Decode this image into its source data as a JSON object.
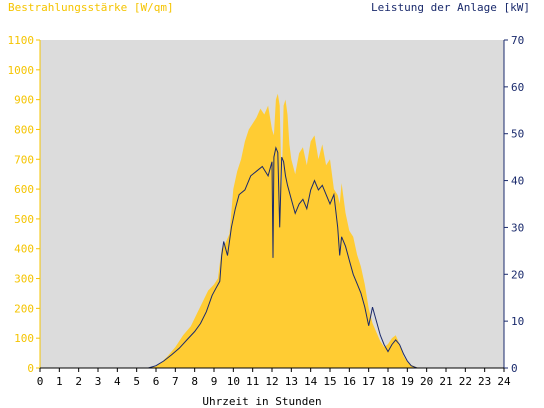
{
  "chart_data": {
    "type": "area",
    "title_left": "Bestrahlungsstärke [W/qm]",
    "title_right": "Leistung der Anlage [kW]",
    "xlabel": "Uhrzeit in Stunden",
    "xlim": [
      0,
      24
    ],
    "x_ticks": [
      "0",
      "1",
      "2",
      "3",
      "4",
      "5",
      "6",
      "7",
      "8",
      "9",
      "10",
      "11",
      "12",
      "13",
      "14",
      "15",
      "16",
      "17",
      "18",
      "19",
      "20",
      "21",
      "22",
      "23",
      "24"
    ],
    "ylim_left": [
      0,
      1100
    ],
    "y_ticks_left": [
      "0",
      "100",
      "200",
      "300",
      "400",
      "500",
      "600",
      "700",
      "800",
      "900",
      "1000",
      "1100"
    ],
    "ylim_right": [
      0,
      70
    ],
    "y_ticks_right": [
      "0",
      "10",
      "20",
      "30",
      "40",
      "50",
      "60",
      "70"
    ],
    "grid": false,
    "plot_background": "#dcdcdc",
    "series": [
      {
        "name": "Bestrahlungsstärke",
        "axis": "left",
        "style": "area",
        "color": "#ffcc33",
        "x": [
          0,
          5.5,
          6,
          6.3,
          6.6,
          7,
          7.4,
          7.8,
          8.1,
          8.4,
          8.7,
          9,
          9.2,
          9.4,
          9.6,
          9.8,
          10,
          10.2,
          10.4,
          10.6,
          10.8,
          11,
          11.2,
          11.4,
          11.6,
          11.8,
          12,
          12.1,
          12.2,
          12.3,
          12.4,
          12.5,
          12.6,
          12.7,
          12.8,
          12.9,
          13,
          13.2,
          13.4,
          13.6,
          13.8,
          14,
          14.2,
          14.4,
          14.6,
          14.8,
          15,
          15.2,
          15.4,
          15.5,
          15.6,
          15.8,
          16,
          16.2,
          16.4,
          16.6,
          16.8,
          17,
          17.2,
          17.4,
          17.6,
          17.8,
          18,
          18.2,
          18.4,
          18.6,
          18.8,
          19,
          19.2,
          19.5,
          20,
          24
        ],
        "values": [
          0,
          0,
          5,
          20,
          40,
          70,
          110,
          140,
          180,
          220,
          260,
          280,
          300,
          400,
          420,
          450,
          600,
          660,
          700,
          760,
          800,
          820,
          840,
          870,
          850,
          880,
          800,
          780,
          900,
          920,
          880,
          600,
          880,
          900,
          850,
          750,
          700,
          650,
          720,
          740,
          680,
          760,
          780,
          700,
          750,
          680,
          700,
          600,
          580,
          550,
          620,
          520,
          460,
          440,
          380,
          340,
          280,
          200,
          150,
          120,
          90,
          70,
          80,
          100,
          110,
          80,
          40,
          20,
          10,
          2,
          0,
          0
        ]
      },
      {
        "name": "Leistung der Anlage",
        "axis": "right",
        "style": "line",
        "color": "#1a2a6c",
        "x": [
          0,
          5.6,
          6,
          6.4,
          6.8,
          7.2,
          7.6,
          8,
          8.3,
          8.6,
          8.9,
          9.1,
          9.3,
          9.4,
          9.5,
          9.7,
          9.9,
          10.1,
          10.3,
          10.6,
          10.9,
          11.2,
          11.5,
          11.8,
          12,
          12.05,
          12.1,
          12.2,
          12.3,
          12.4,
          12.5,
          12.6,
          12.7,
          12.8,
          13,
          13.2,
          13.4,
          13.6,
          13.8,
          14,
          14.1,
          14.2,
          14.4,
          14.6,
          14.8,
          15,
          15.2,
          15.4,
          15.5,
          15.6,
          15.8,
          16,
          16.2,
          16.4,
          16.6,
          16.8,
          17,
          17.1,
          17.2,
          17.4,
          17.6,
          17.8,
          18,
          18.2,
          18.4,
          18.6,
          18.8,
          19,
          19.2,
          19.5,
          20,
          24
        ],
        "values": [
          0,
          0,
          0.5,
          1.5,
          2.8,
          4.2,
          6,
          7.8,
          9.5,
          12,
          15.5,
          17,
          18.5,
          24,
          27,
          24,
          30,
          34,
          37,
          38,
          41,
          42,
          43,
          41,
          44,
          23.5,
          45,
          47,
          46,
          30,
          45,
          44,
          41,
          39,
          36,
          33,
          35,
          36,
          34,
          38,
          39,
          40,
          38,
          39,
          37,
          35,
          37,
          30,
          24,
          28,
          26,
          23,
          20,
          18,
          16,
          13,
          9,
          11,
          13,
          10,
          7,
          5,
          3.5,
          5,
          6,
          5,
          3,
          1.5,
          0.5,
          0,
          0,
          0
        ]
      }
    ]
  }
}
